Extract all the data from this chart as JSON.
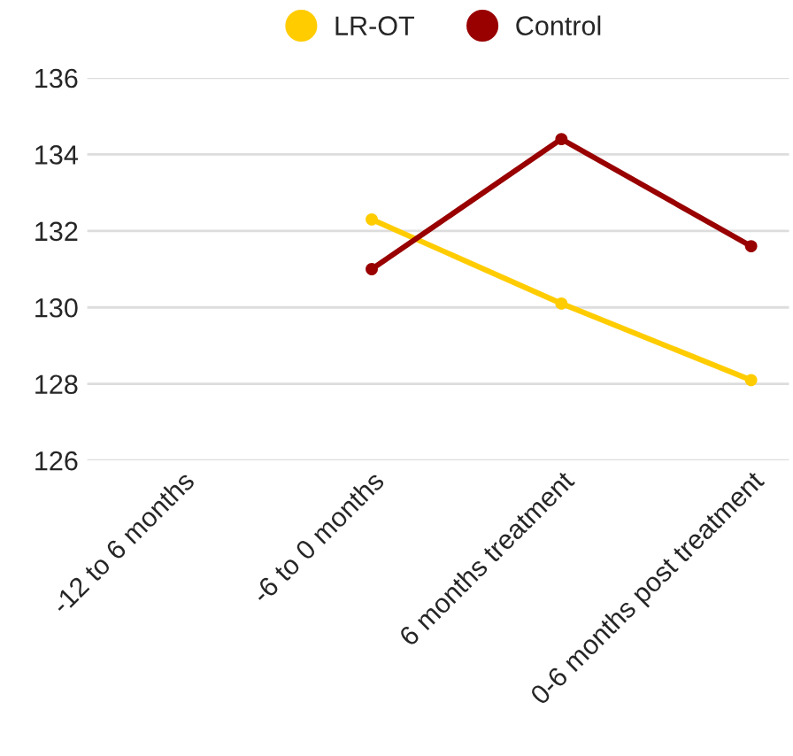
{
  "chart_data": {
    "type": "line",
    "categories": [
      "-12 to 6 months",
      "-6 to 0 months",
      "6 months treatment",
      "0-6 months post treatment"
    ],
    "series": [
      {
        "name": "LR-OT",
        "color": "#ffcc00",
        "values": [
          null,
          132.3,
          130.1,
          128.1
        ]
      },
      {
        "name": "Control",
        "color": "#990000",
        "values": [
          null,
          131.0,
          134.4,
          131.6
        ]
      }
    ],
    "ylim": [
      126,
      136
    ],
    "yticks": [
      126,
      128,
      130,
      132,
      134,
      136
    ],
    "grid": "y",
    "legend": "top",
    "marker": "circle",
    "line_style": "solid"
  }
}
